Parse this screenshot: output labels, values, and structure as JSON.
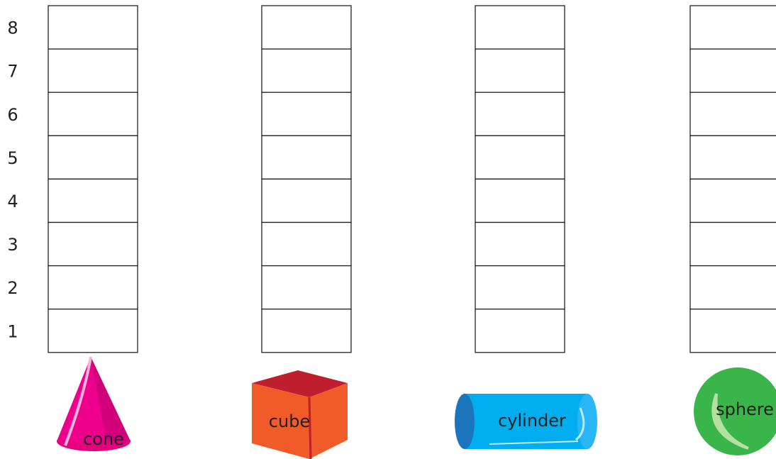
{
  "levels": [
    8,
    7,
    6,
    5,
    4,
    3,
    2,
    1
  ],
  "columns": [
    {
      "label": "cone"
    },
    {
      "label": "cube"
    },
    {
      "label": "cylinder"
    },
    {
      "label": "sphere"
    }
  ]
}
